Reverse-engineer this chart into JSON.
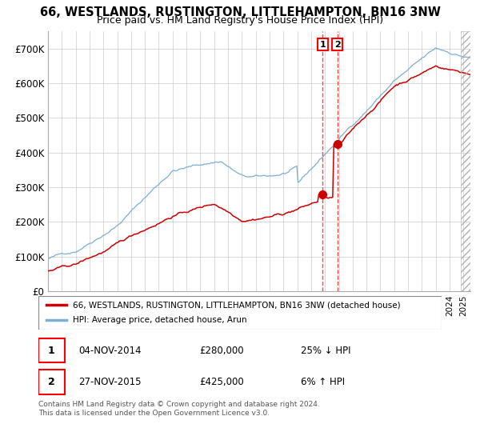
{
  "title": "66, WESTLANDS, RUSTINGTON, LITTLEHAMPTON, BN16 3NW",
  "subtitle": "Price paid vs. HM Land Registry's House Price Index (HPI)",
  "xlim": [
    1995.0,
    2025.5
  ],
  "ylim": [
    0,
    750000
  ],
  "yticks": [
    0,
    100000,
    200000,
    300000,
    400000,
    500000,
    600000,
    700000
  ],
  "ytick_labels": [
    "£0",
    "£100K",
    "£200K",
    "£300K",
    "£400K",
    "£500K",
    "£600K",
    "£700K"
  ],
  "legend_entries": [
    "66, WESTLANDS, RUSTINGTON, LITTLEHAMPTON, BN16 3NW (detached house)",
    "HPI: Average price, detached house, Arun"
  ],
  "legend_colors": [
    "#cc0000",
    "#7bafd4"
  ],
  "transaction1": {
    "date": 2014.84,
    "price": 280000,
    "label": "1",
    "date_str": "04-NOV-2014",
    "price_str": "£280,000",
    "change": "25% ↓ HPI"
  },
  "transaction2": {
    "date": 2015.9,
    "price": 425000,
    "label": "2",
    "date_str": "27-NOV-2015",
    "price_str": "£425,000",
    "change": "6% ↑ HPI"
  },
  "footer": "Contains HM Land Registry data © Crown copyright and database right 2024.\nThis data is licensed under the Open Government Licence v3.0.",
  "bg_color": "#ffffff",
  "grid_color": "#cccccc",
  "hatch_start": 2024.83
}
